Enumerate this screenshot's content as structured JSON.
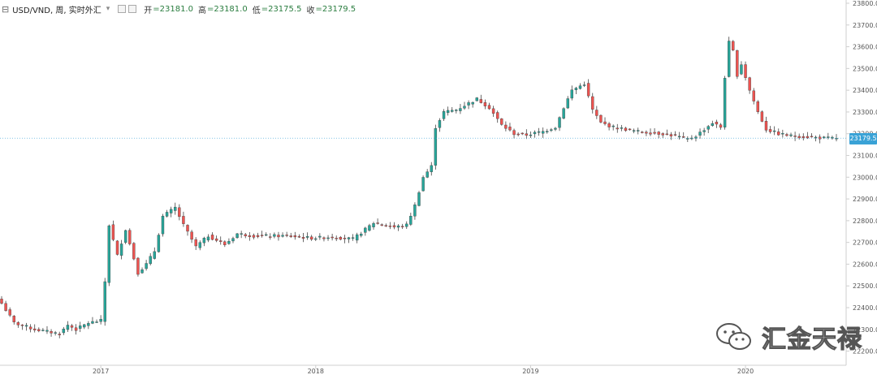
{
  "header": {
    "symbol_icon": "collapse-box-icon",
    "title": "USD/VND, 周, 实时外汇",
    "caret": "▾",
    "ohlc": [
      {
        "label": "开",
        "value": "=23181.0"
      },
      {
        "label": "高",
        "value": "=23181.0"
      },
      {
        "label": "低",
        "value": "=23175.5"
      },
      {
        "label": "收",
        "value": "=23179.5"
      }
    ]
  },
  "price_tag": "23179.5",
  "watermark": "汇金天禄",
  "colors": {
    "up": "#26a69a",
    "down": "#ef5350",
    "tag": "#3aa2d6"
  },
  "chart_data": {
    "type": "candlestick",
    "title": "USD/VND, 周, 实时外汇",
    "interval": "weekly",
    "x_ticks": [
      "2017",
      "2018",
      "2019",
      "2020"
    ],
    "ylim": [
      22150,
      23800
    ],
    "y_ticks": [
      "22200.0",
      "22300.0",
      "22400.0",
      "22500.0",
      "22600.0",
      "22700.0",
      "22800.0",
      "22900.0",
      "23000.0",
      "23100.0",
      "23200.0",
      "23300.0",
      "23400.0",
      "23500.0",
      "23600.0",
      "23700.0",
      "23800.0"
    ],
    "last_price": 23179.5,
    "close_path": [
      [
        0,
        22420
      ],
      [
        3,
        22330
      ],
      [
        8,
        22300
      ],
      [
        14,
        22280
      ],
      [
        16,
        22320
      ],
      [
        18,
        22300
      ],
      [
        21,
        22330
      ],
      [
        24,
        22340
      ],
      [
        25,
        22520
      ],
      [
        26,
        22780
      ],
      [
        28,
        22640
      ],
      [
        30,
        22760
      ],
      [
        33,
        22560
      ],
      [
        35,
        22600
      ],
      [
        37,
        22660
      ],
      [
        39,
        22820
      ],
      [
        42,
        22860
      ],
      [
        44,
        22780
      ],
      [
        47,
        22680
      ],
      [
        50,
        22730
      ],
      [
        54,
        22690
      ],
      [
        57,
        22740
      ],
      [
        61,
        22730
      ],
      [
        69,
        22730
      ],
      [
        75,
        22720
      ],
      [
        80,
        22725
      ],
      [
        85,
        22715
      ],
      [
        88,
        22760
      ],
      [
        90,
        22790
      ],
      [
        95,
        22770
      ],
      [
        98,
        22780
      ],
      [
        100,
        22870
      ],
      [
        102,
        23000
      ],
      [
        104,
        23050
      ],
      [
        105,
        23230
      ],
      [
        107,
        23300
      ],
      [
        110,
        23310
      ],
      [
        113,
        23340
      ],
      [
        115,
        23360
      ],
      [
        118,
        23320
      ],
      [
        121,
        23240
      ],
      [
        124,
        23200
      ],
      [
        127,
        23195
      ],
      [
        131,
        23210
      ],
      [
        134,
        23230
      ],
      [
        136,
        23320
      ],
      [
        138,
        23400
      ],
      [
        141,
        23430
      ],
      [
        143,
        23310
      ],
      [
        145,
        23250
      ],
      [
        148,
        23230
      ],
      [
        151,
        23220
      ],
      [
        154,
        23210
      ],
      [
        157,
        23205
      ],
      [
        160,
        23200
      ],
      [
        163,
        23190
      ],
      [
        166,
        23175
      ],
      [
        168,
        23190
      ],
      [
        170,
        23220
      ],
      [
        172,
        23250
      ],
      [
        174,
        23230
      ],
      [
        175,
        23460
      ],
      [
        176,
        23620
      ],
      [
        177,
        23580
      ],
      [
        178,
        23470
      ],
      [
        179,
        23520
      ],
      [
        181,
        23400
      ],
      [
        183,
        23300
      ],
      [
        185,
        23220
      ],
      [
        188,
        23200
      ],
      [
        191,
        23190
      ],
      [
        195,
        23185
      ],
      [
        199,
        23180
      ],
      [
        202,
        23179.5
      ]
    ]
  }
}
